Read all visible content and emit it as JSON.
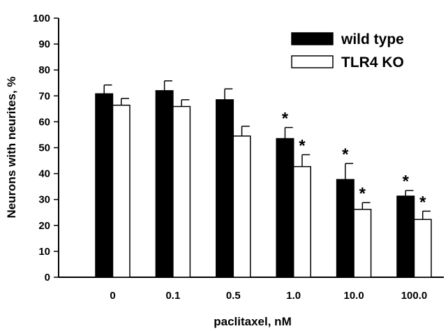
{
  "chart_data": {
    "type": "bar",
    "xlabel": "paclitaxel, nM",
    "ylabel": "Neurons with neurites, %",
    "categories": [
      "0",
      "0.1",
      "0.5",
      "1.0",
      "10.0",
      "100.0"
    ],
    "ylim": [
      0,
      100
    ],
    "yticks": [
      "0",
      "10",
      "20",
      "30",
      "40",
      "50",
      "60",
      "70",
      "80",
      "90",
      "100"
    ],
    "series": [
      {
        "name": "wild type",
        "color": "#000000",
        "values": [
          70.8,
          72.0,
          68.5,
          53.5,
          37.7,
          31.3
        ],
        "errors": [
          3.4,
          3.8,
          4.2,
          4.3,
          6.2,
          2.2
        ],
        "significance": [
          "",
          "",
          "",
          "*",
          "*",
          "*"
        ]
      },
      {
        "name": "TLR4 KO",
        "color": "#ffffff",
        "values": [
          66.4,
          65.9,
          54.5,
          42.7,
          26.2,
          22.3
        ],
        "errors": [
          2.6,
          2.6,
          3.8,
          4.6,
          2.6,
          3.2
        ],
        "significance": [
          "",
          "",
          "",
          "*",
          "*",
          "*"
        ]
      }
    ],
    "legend_position": "top-right",
    "grid": false
  }
}
